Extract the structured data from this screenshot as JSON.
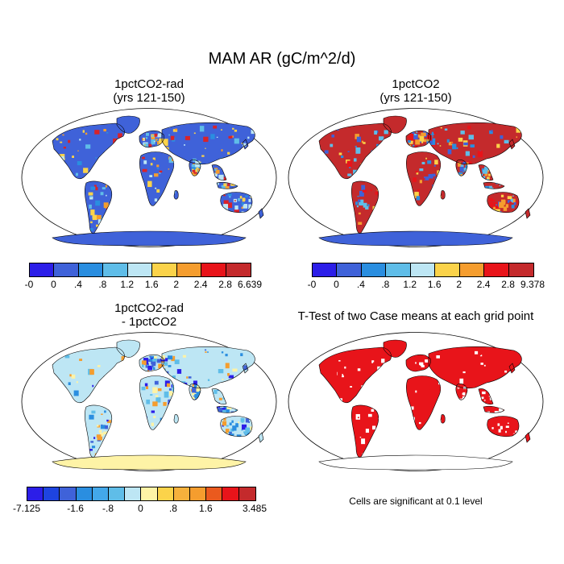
{
  "main_title": "MAM AR (gC/m^2/d)",
  "panels": [
    {
      "id": "p1",
      "title_lines": [
        "1pctCO2-rad",
        "(yrs 121-150)"
      ],
      "ocean": "#ffffff",
      "land_base": "#3f62d9",
      "antarctica": "#3f62d9",
      "patch_colors": [
        "#d8232a",
        "#f59d2e",
        "#fbd34a",
        "#5fbde8",
        "#2a8ee0",
        "#bde6f4"
      ]
    },
    {
      "id": "p2",
      "title_lines": [
        "1pctCO2",
        "(yrs 121-150)"
      ],
      "ocean": "#ffffff",
      "land_base": "#c42a2c",
      "antarctica": "#3f62d9",
      "patch_colors": [
        "#3f62d9",
        "#2a8ee0",
        "#f59d2e",
        "#fbd34a",
        "#e8141a",
        "#5fbde8"
      ]
    },
    {
      "id": "p3",
      "title_lines": [
        "1pctCO2-rad",
        "- 1pctCO2"
      ],
      "ocean": "#ffffff",
      "land_base": "#bde6f4",
      "antarctica": "#fef3a6",
      "patch_colors": [
        "#2c1ee8",
        "#3f62d9",
        "#fef3a6",
        "#5fbde8",
        "#f59d2e",
        "#2a8ee0"
      ]
    },
    {
      "id": "p4",
      "title_lines": [
        "T-Test of two Case means at each grid point"
      ],
      "ocean": "#ffffff",
      "land_base": "#e8141a",
      "antarctica": "#ffffff",
      "patch_colors": [
        "#ffffff",
        "#ffffff",
        "#e8141a",
        "#ffffff"
      ]
    }
  ],
  "colorbars": [
    {
      "id": "cb1",
      "colors": [
        "#2c1ee8",
        "#3f62d9",
        "#2a8ee0",
        "#5fbde8",
        "#bde6f4",
        "#fbd34a",
        "#f59d2e",
        "#e8141a",
        "#c42a2c"
      ],
      "labels": [
        "-0",
        "0",
        ".4",
        ".8",
        "1.2",
        "1.6",
        "2",
        "2.4",
        "2.8",
        "6.639"
      ]
    },
    {
      "id": "cb2",
      "colors": [
        "#2c1ee8",
        "#3f62d9",
        "#2a8ee0",
        "#5fbde8",
        "#bde6f4",
        "#fbd34a",
        "#f59d2e",
        "#e8141a",
        "#c42a2c"
      ],
      "labels": [
        "-0",
        "0",
        ".4",
        ".8",
        "1.2",
        "1.6",
        "2",
        "2.4",
        "2.8",
        "9.378"
      ]
    },
    {
      "id": "cb3",
      "colors": [
        "#2c1ee8",
        "#1e44e0",
        "#3f62d9",
        "#2a8ee0",
        "#43a8ea",
        "#5fbde8",
        "#bde6f4",
        "#fef3a6",
        "#fbd34a",
        "#f6b13c",
        "#f59d2e",
        "#ea5a1e",
        "#e8141a",
        "#c42a2c"
      ],
      "labels": [
        "-7.125",
        "-1.6",
        "-.8",
        "0",
        ".8",
        "1.6",
        "3.485"
      ],
      "label_positions": [
        0,
        3,
        5,
        7,
        9,
        11,
        14
      ]
    }
  ],
  "significance_note": "Cells are significant at 0.1 level"
}
